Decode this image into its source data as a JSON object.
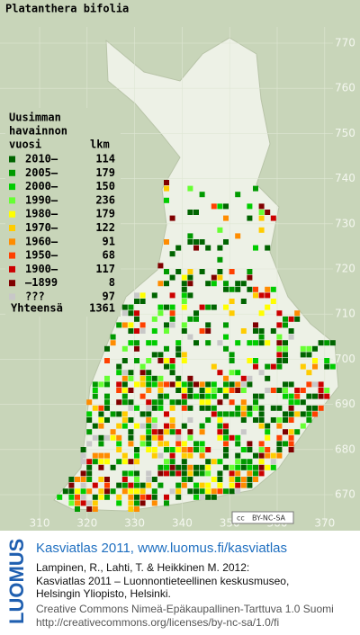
{
  "title": "Platanthera bifolia",
  "legend": {
    "heading": [
      "Uusimman",
      "havainnon"
    ],
    "col_year": "vuosi",
    "col_count": "lkm",
    "items": [
      {
        "label": "2010–",
        "count": 114,
        "color": "#006400"
      },
      {
        "label": "2005–",
        "count": 179,
        "color": "#009a00"
      },
      {
        "label": "2000–",
        "count": 150,
        "color": "#00cc00"
      },
      {
        "label": "1990–",
        "count": 236,
        "color": "#66ff33"
      },
      {
        "label": "1980–",
        "count": 179,
        "color": "#ffff00"
      },
      {
        "label": "1970–",
        "count": 122,
        "color": "#ffcc00"
      },
      {
        "label": "1960–",
        "count": 91,
        "color": "#ff8c00"
      },
      {
        "label": "1950–",
        "count": 68,
        "color": "#ff4000"
      },
      {
        "label": "1900–",
        "count": 117,
        "color": "#cc0000"
      },
      {
        "label": "–1899",
        "count": 8,
        "color": "#800000"
      },
      {
        "label": "???",
        "count": 97,
        "color": "#c8c8c8"
      }
    ],
    "total_label": "Yhteensä",
    "total": 1361
  },
  "grid": {
    "north": [
      "770",
      "760",
      "750",
      "740",
      "730",
      "720",
      "710",
      "700",
      "690",
      "680",
      "670"
    ],
    "east": [
      "310",
      "320",
      "330",
      "340",
      "350",
      "360",
      "370"
    ]
  },
  "badge": [
    "cc",
    "BY-NC-SA"
  ],
  "footer": {
    "logo": "LUOMUS",
    "heading": "Kasviatlas 2011, www.luomus.fi/kasviatlas",
    "citation": [
      "Lampinen, R., Lahti, T. & Heikkinen M. 2012:",
      "Kasviatlas 2011 – Luonnontieteellinen keskusmuseo,",
      "Helsingin Yliopisto, Helsinki."
    ],
    "license": [
      "Creative Commons Nimeä-Epäkaupallinen-Tarttuva 1.0 Suomi",
      "http://creativecommons.org/licenses/by-nc-sa/1.0/fi"
    ]
  }
}
